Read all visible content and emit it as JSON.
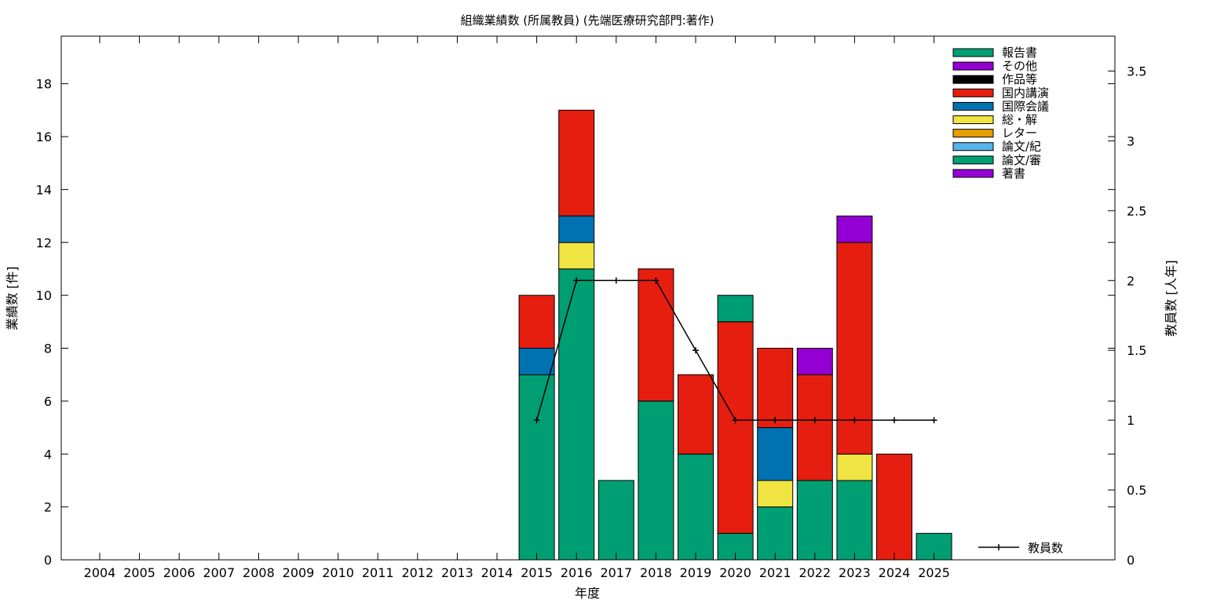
{
  "chart_data": {
    "type": "bar",
    "title": "組織業績数 (所属教員) (先端医療研究部門:著作)",
    "xlabel": "年度",
    "ylabel": "業績数 [件]",
    "y2label": "教員数 [人年]",
    "ylim": [
      0,
      19.8
    ],
    "y2lim": [
      0,
      3.75
    ],
    "yticks": [
      "0",
      "2",
      "4",
      "6",
      "8",
      "10",
      "12",
      "14",
      "16",
      "18"
    ],
    "y2ticks": [
      "0",
      "0.5",
      "1",
      "1.5",
      "2",
      "2.5",
      "3",
      "3.5"
    ],
    "categories": [
      "2004",
      "2005",
      "2006",
      "2007",
      "2008",
      "2009",
      "2010",
      "2011",
      "2012",
      "2013",
      "2014",
      "2015",
      "2016",
      "2017",
      "2018",
      "2019",
      "2020",
      "2021",
      "2022",
      "2023",
      "2024",
      "2025"
    ],
    "stack_order_bottom_to_top": [
      "著書",
      "論文/審",
      "論文/紀",
      "レター",
      "総・解",
      "国際会議",
      "国内講演",
      "作品等",
      "その他",
      "報告書"
    ],
    "series": [
      {
        "name": "報告書",
        "color": "#009e73",
        "values": [
          0,
          0,
          0,
          0,
          0,
          0,
          0,
          0,
          0,
          0,
          0,
          0,
          0,
          0,
          0,
          0,
          1,
          0,
          0,
          0,
          0,
          0
        ]
      },
      {
        "name": "その他",
        "color": "#9400d3",
        "values": [
          0,
          0,
          0,
          0,
          0,
          0,
          0,
          0,
          0,
          0,
          0,
          0,
          0,
          0,
          0,
          0,
          0,
          0,
          1,
          1,
          0,
          0
        ]
      },
      {
        "name": "作品等",
        "color": "#000000",
        "values": [
          0,
          0,
          0,
          0,
          0,
          0,
          0,
          0,
          0,
          0,
          0,
          0,
          0,
          0,
          0,
          0,
          0,
          0,
          0,
          0,
          0,
          0
        ]
      },
      {
        "name": "国内講演",
        "color": "#e51e10",
        "values": [
          0,
          0,
          0,
          0,
          0,
          0,
          0,
          0,
          0,
          0,
          0,
          2,
          4,
          0,
          5,
          3,
          8,
          3,
          4,
          8,
          4,
          0
        ]
      },
      {
        "name": "国際会議",
        "color": "#0072b2",
        "values": [
          0,
          0,
          0,
          0,
          0,
          0,
          0,
          0,
          0,
          0,
          0,
          1,
          1,
          0,
          0,
          0,
          0,
          2,
          0,
          0,
          0,
          0
        ]
      },
      {
        "name": "総・解",
        "color": "#f0e442",
        "values": [
          0,
          0,
          0,
          0,
          0,
          0,
          0,
          0,
          0,
          0,
          0,
          0,
          1,
          0,
          0,
          0,
          0,
          1,
          0,
          1,
          0,
          0
        ]
      },
      {
        "name": "レター",
        "color": "#e69f00",
        "values": [
          0,
          0,
          0,
          0,
          0,
          0,
          0,
          0,
          0,
          0,
          0,
          0,
          0,
          0,
          0,
          0,
          0,
          0,
          0,
          0,
          0,
          0
        ]
      },
      {
        "name": "論文/紀",
        "color": "#56b4e9",
        "values": [
          0,
          0,
          0,
          0,
          0,
          0,
          0,
          0,
          0,
          0,
          0,
          0,
          0,
          0,
          0,
          0,
          0,
          0,
          0,
          0,
          0,
          0
        ]
      },
      {
        "name": "論文/審",
        "color": "#009e73",
        "values": [
          0,
          0,
          0,
          0,
          0,
          0,
          0,
          0,
          0,
          0,
          0,
          7,
          11,
          3,
          6,
          4,
          1,
          2,
          3,
          3,
          0,
          1
        ]
      },
      {
        "name": "著書",
        "color": "#9400d3",
        "values": [
          0,
          0,
          0,
          0,
          0,
          0,
          0,
          0,
          0,
          0,
          0,
          0,
          0,
          0,
          0,
          0,
          0,
          0,
          0,
          0,
          0,
          0
        ]
      }
    ],
    "line_series": {
      "name": "教員数",
      "axis": "y2",
      "color": "#000000",
      "x": [
        "2015",
        "2016",
        "2017",
        "2018",
        "2019",
        "2020",
        "2021",
        "2022",
        "2023",
        "2024",
        "2025"
      ],
      "values": [
        1,
        2,
        2,
        2,
        1.5,
        1,
        1,
        1,
        1,
        1,
        1
      ]
    },
    "legend_position": "top-right",
    "line_legend_position": "bottom-right",
    "grid": false
  }
}
